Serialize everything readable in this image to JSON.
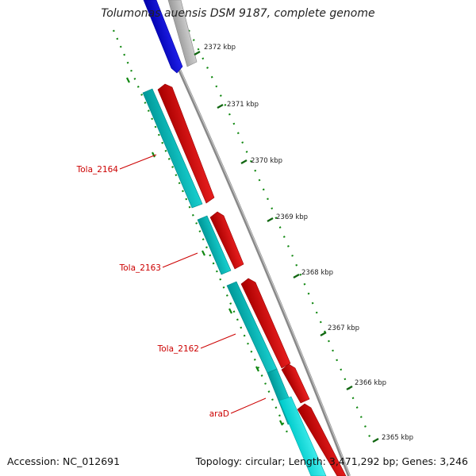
{
  "title": "Tolumonas auensis DSM 9187, complete genome",
  "footer": {
    "accession": "Accession: NC_012691",
    "stats": "Topology: circular; Length: 3,471,292 bp; Genes: 3,246"
  },
  "ticks": [
    {
      "label": "2372 kbp"
    },
    {
      "label": "2371 kbp"
    },
    {
      "label": "2370 kbp"
    },
    {
      "label": "2369 kbp"
    },
    {
      "label": "2368 kbp"
    },
    {
      "label": "2367 kbp"
    },
    {
      "label": "2366 kbp"
    },
    {
      "label": "2365 kbp"
    }
  ],
  "gene_labels": [
    {
      "label": "Tola_2164"
    },
    {
      "label": "Tola_2163"
    },
    {
      "label": "Tola_2162"
    },
    {
      "label": "araD"
    }
  ],
  "colors": {
    "label_red": "#cc0000",
    "cds_forward": "#ff0000",
    "cds_reverse": "#00cccc",
    "cds_blue": "#0000ee",
    "gray_feature": "#b8b8b8",
    "backbone": "#808080",
    "tick_green": "#118811"
  }
}
